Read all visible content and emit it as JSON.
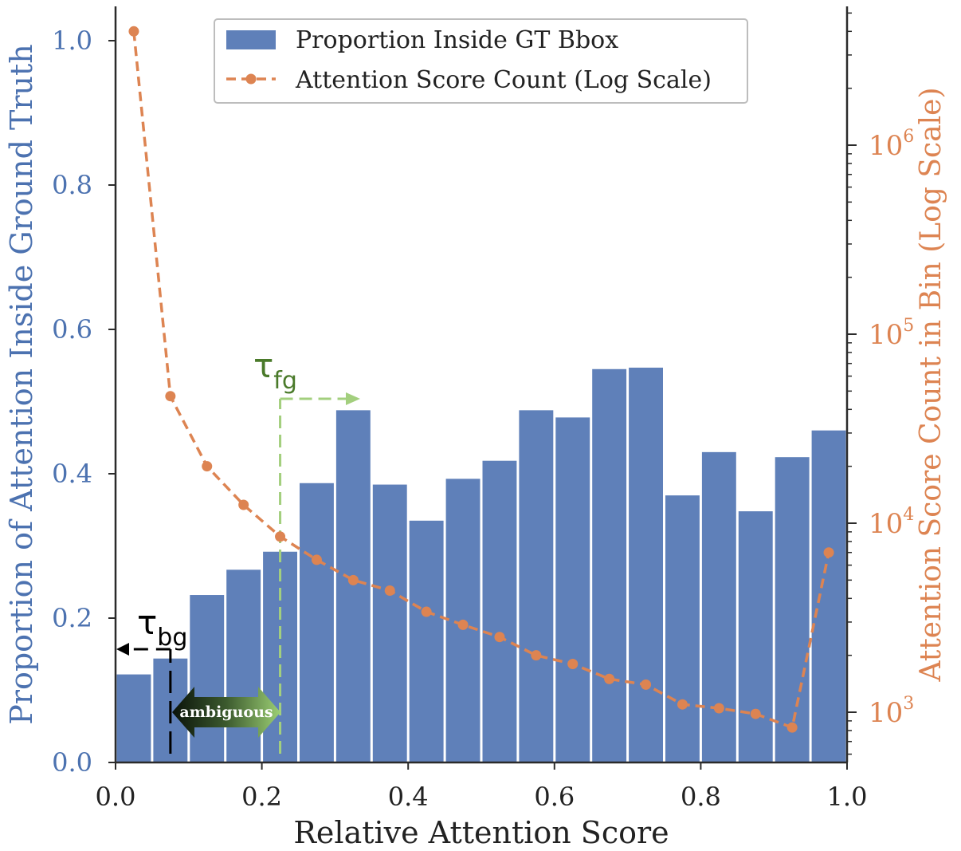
{
  "chart_data": {
    "type": "bar",
    "title": "",
    "xlabel": "Relative Attention Score",
    "ylabel_left": "Proportion of Attention Inside Ground Truth",
    "ylabel_right": "Attention Score Count in Bin (Log Scale)",
    "xlim": [
      0.0,
      1.0
    ],
    "ylim_left": [
      0.0,
      1.05
    ],
    "ylim_right_log10": [
      2.73,
      6.73
    ],
    "x_ticks": [
      "0.0",
      "0.2",
      "0.4",
      "0.6",
      "0.8",
      "1.0"
    ],
    "y_left_ticks": [
      "0.0",
      "0.2",
      "0.4",
      "0.6",
      "0.8",
      "1.0"
    ],
    "y_right_ticks": [
      {
        "base": "10",
        "exp": "3",
        "log": 3
      },
      {
        "base": "10",
        "exp": "4",
        "log": 4
      },
      {
        "base": "10",
        "exp": "5",
        "log": 5
      },
      {
        "base": "10",
        "exp": "6",
        "log": 6
      }
    ],
    "bin_width": 0.05,
    "bin_centers": [
      0.025,
      0.075,
      0.125,
      0.175,
      0.225,
      0.275,
      0.325,
      0.375,
      0.425,
      0.475,
      0.525,
      0.575,
      0.625,
      0.675,
      0.725,
      0.775,
      0.825,
      0.875,
      0.925,
      0.975
    ],
    "series": [
      {
        "name": "Proportion Inside GT Bbox",
        "type": "bar",
        "axis": "left",
        "color": "#5f80b9",
        "values": [
          0.122,
          0.144,
          0.232,
          0.267,
          0.292,
          0.387,
          0.488,
          0.385,
          0.335,
          0.393,
          0.418,
          0.488,
          0.478,
          0.545,
          0.547,
          0.37,
          0.43,
          0.348,
          0.423,
          0.46
        ]
      },
      {
        "name": "Attention Score Count (Log Scale)",
        "type": "line",
        "axis": "right",
        "style": "dashed",
        "marker": "circle",
        "color": "#dd8452",
        "values": [
          4000000,
          47000,
          20000,
          12500,
          8500,
          6400,
          5000,
          4400,
          3400,
          2900,
          2500,
          2000,
          1800,
          1500,
          1400,
          1100,
          1050,
          980,
          830,
          7000
        ]
      }
    ],
    "legend": {
      "position": "top-center",
      "entries": [
        "Proportion Inside GT Bbox",
        "Attention Score Count (Log Scale)"
      ]
    },
    "annotations": {
      "tau_bg": {
        "symbol": "τ",
        "subscript": "bg",
        "x": 0.075,
        "color": "#000000"
      },
      "tau_fg": {
        "symbol": "τ",
        "subscript": "fg",
        "x": 0.225,
        "color": "#4a7a2a"
      },
      "ambiguous": {
        "label": "ambiguous",
        "x_from": 0.075,
        "x_to": 0.225
      }
    },
    "colors": {
      "left_axis": "#4c72b0",
      "right_axis": "#dd8452",
      "tau_fg_line": "#a3cf7e",
      "axis_line": "#2b2b2b"
    }
  }
}
